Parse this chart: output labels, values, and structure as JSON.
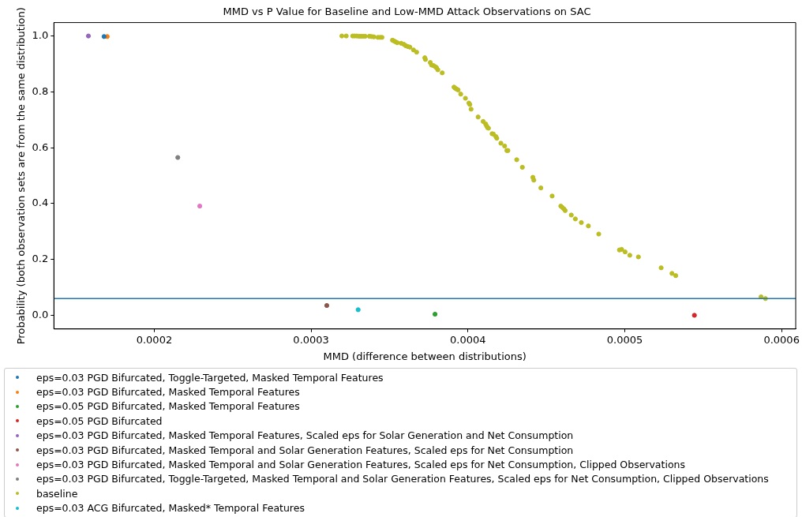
{
  "chart_data": {
    "type": "scatter",
    "title": "MMD vs P Value for Baseline and Low-MMD Attack Observations on SAC",
    "xlabel": "MMD (difference between distributions)",
    "ylabel": "Probability (both observation sets are from the same distribution)",
    "xlim": [
      0.000136,
      0.000609
    ],
    "xticks": [
      0.0002,
      0.0003,
      0.0004,
      0.0005,
      0.0006
    ],
    "ylim": [
      -0.049,
      1.048
    ],
    "yticks": [
      {
        "value": 0,
        "label": "0.0"
      },
      {
        "value": 0.2,
        "label": "0.2"
      },
      {
        "value": 0.4,
        "label": "0.4"
      },
      {
        "value": 0.6,
        "label": "0.6"
      },
      {
        "value": 0.8,
        "label": "0.8"
      },
      {
        "value": 1,
        "label": "1.0"
      }
    ],
    "grid": false,
    "legend": "bottom",
    "marker": "circle",
    "ref_lines": [
      {
        "axis": "y",
        "value": 0.06,
        "color": "#1f77b4"
      }
    ],
    "series": [
      {
        "name": "eps=0.03 PGD Bifurcated, Toggle-Targeted, Masked Temporal Features",
        "color": "#1f77b4",
        "x": [
          0.000168
        ],
        "values": [
          0.998
        ]
      },
      {
        "name": "eps=0.03 PGD Bifurcated, Masked Temporal Features",
        "color": "#ff7f0e",
        "x": [
          0.00017
        ],
        "values": [
          0.998
        ]
      },
      {
        "name": "eps=0.05 PGD Bifurcated, Masked Temporal Features",
        "color": "#2ca02c",
        "x": [
          0.000379
        ],
        "values": [
          0.004
        ]
      },
      {
        "name": "eps=0.05 PGD Bifurcated",
        "color": "#d62728",
        "x": [
          0.0005444
        ],
        "values": [
          0.0
        ]
      },
      {
        "name": "eps=0.03 PGD Bifurcated, Masked Temporal Features, Scaled eps for Solar Generation and Net Consumption",
        "color": "#9467bd",
        "x": [
          0.000158
        ],
        "values": [
          1.0
        ]
      },
      {
        "name": "eps=0.03 PGD Bifurcated, Masked Temporal and Solar Generation Features, Scaled eps for Net Consumption",
        "color": "#8c564b",
        "x": [
          0.00031
        ],
        "values": [
          0.035
        ]
      },
      {
        "name": "eps=0.03 PGD Bifurcated, Masked Temporal and Solar Generation Features, Scaled eps for Net Consumption, Clipped Observations",
        "color": "#e377c2",
        "x": [
          0.000229
        ],
        "values": [
          0.391
        ]
      },
      {
        "name": "eps=0.03 PGD Bifurcated, Toggle-Targeted, Masked Temporal and Solar Generation Features, Scaled eps for Net Consumption, Clipped Observations",
        "color": "#7f7f7f",
        "x": [
          0.000215
        ],
        "values": [
          0.565
        ]
      },
      {
        "name": "baseline",
        "color": "#bcbd22",
        "x": [
          0.0003196,
          0.0003224,
          0.0003265,
          0.0003277,
          0.0003291,
          0.0003305,
          0.0003317,
          0.0003331,
          0.0003345,
          0.0003372,
          0.0003386,
          0.00034,
          0.0003426,
          0.000344,
          0.0003452,
          0.0003519,
          0.0003529,
          0.0003539,
          0.0003549,
          0.0003574,
          0.0003592,
          0.0003604,
          0.0003618,
          0.000363,
          0.0003653,
          0.0003673,
          0.0003725,
          0.0003729,
          0.000376,
          0.0003768,
          0.000378,
          0.0003792,
          0.00038,
          0.0003808,
          0.0003836,
          0.0003911,
          0.0003919,
          0.0003927,
          0.0003937,
          0.0003954,
          0.0003984,
          0.0004006,
          0.0004012,
          0.000402,
          0.0004065,
          0.0004097,
          0.0004113,
          0.0004119,
          0.0004125,
          0.0004131,
          0.0004154,
          0.0004162,
          0.0004178,
          0.0004184,
          0.000421,
          0.0004234,
          0.0004248,
          0.0004255,
          0.0004311,
          0.0004347,
          0.0004414,
          0.000442,
          0.0004465,
          0.0004537,
          0.0004592,
          0.0004602,
          0.0004612,
          0.000462,
          0.0004659,
          0.0004685,
          0.0004723,
          0.0004768,
          0.0004834,
          0.0004966,
          0.000498,
          0.0005002,
          0.0005032,
          0.0005087,
          0.0005232,
          0.0005301,
          0.0005325,
          0.0005869,
          0.0005897
        ],
        "values": [
          1.0,
          1.0,
          1.0,
          1.0,
          1.0,
          0.999,
          0.999,
          0.999,
          0.999,
          0.999,
          0.998,
          0.997,
          0.995,
          0.995,
          0.995,
          0.985,
          0.982,
          0.979,
          0.976,
          0.974,
          0.97,
          0.965,
          0.962,
          0.96,
          0.95,
          0.942,
          0.922,
          0.916,
          0.905,
          0.896,
          0.894,
          0.89,
          0.886,
          0.879,
          0.868,
          0.817,
          0.813,
          0.81,
          0.807,
          0.792,
          0.777,
          0.76,
          0.755,
          0.738,
          0.71,
          0.694,
          0.685,
          0.678,
          0.672,
          0.67,
          0.65,
          0.649,
          0.64,
          0.634,
          0.616,
          0.606,
          0.59,
          0.59,
          0.557,
          0.53,
          0.494,
          0.484,
          0.456,
          0.427,
          0.391,
          0.386,
          0.381,
          0.375,
          0.359,
          0.345,
          0.332,
          0.32,
          0.291,
          0.234,
          0.236,
          0.227,
          0.215,
          0.209,
          0.17,
          0.15,
          0.142,
          0.066,
          0.06
        ]
      },
      {
        "name": "eps=0.03 ACG Bifurcated, Masked* Temporal Features",
        "color": "#17becf",
        "x": [
          0.00033
        ],
        "values": [
          0.02
        ]
      }
    ]
  }
}
